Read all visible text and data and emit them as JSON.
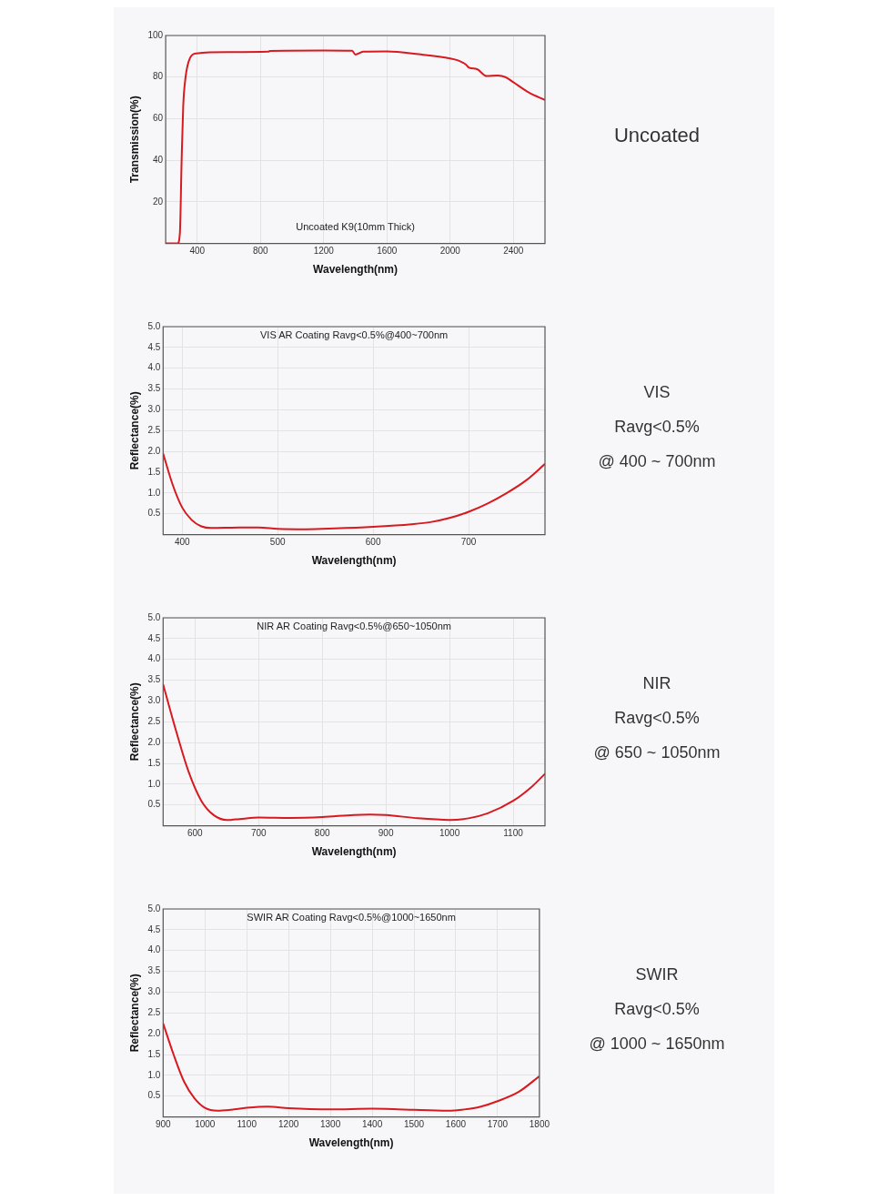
{
  "chart_data": [
    {
      "type": "line",
      "title": "Uncoated K9(10mm Thick)",
      "xlabel": "Wavelength(nm)",
      "ylabel": "Transmission(%)",
      "xlim": [
        200,
        2600
      ],
      "xticks": [
        400,
        800,
        1200,
        1600,
        2000,
        2400
      ],
      "ylim": [
        0,
        100
      ],
      "yticks": [
        20,
        40,
        60,
        80,
        100
      ],
      "grid": true,
      "legend": false,
      "x": [
        200,
        275,
        290,
        301,
        311,
        326,
        353,
        395,
        600,
        850,
        860,
        1200,
        1380,
        1400,
        1450,
        1600,
        1800,
        2000,
        2050,
        2100,
        2120,
        2170,
        2230,
        2300,
        2350,
        2400,
        2500,
        2600
      ],
      "series": [
        {
          "color": "#d71920",
          "values": [
            0,
            0,
            5,
            40,
            66,
            80,
            89,
            91.4,
            92,
            92.2,
            92.6,
            92.8,
            92.7,
            90.8,
            92.2,
            92.3,
            91,
            89,
            88,
            86,
            84.5,
            83.8,
            80.5,
            80.8,
            80,
            77.5,
            72.5,
            69
          ]
        }
      ]
    },
    {
      "type": "other",
      "annotations": [
        "Uncoated"
      ]
    },
    {
      "type": "line",
      "title": "VIS AR Coating Ravg<0.5%@400~700nm",
      "xlabel": "Wavelength(nm)",
      "ylabel": "Reflectance(%)",
      "xlim": [
        380,
        780
      ],
      "xticks": [
        400,
        500,
        600,
        700
      ],
      "ylim": [
        0,
        5
      ],
      "yticks": [
        0.5,
        {
          "value": 1,
          "label": "1.0"
        },
        1.5,
        {
          "value": 2,
          "label": "2.0"
        },
        2.5,
        {
          "value": 3,
          "label": "3.0"
        },
        3.5,
        {
          "value": 4,
          "label": "4.0"
        },
        4.5,
        {
          "value": 5,
          "label": "5.0"
        }
      ],
      "grid": true,
      "legend": false,
      "x": [
        380,
        390,
        400,
        410,
        420,
        430,
        460,
        480,
        500,
        530,
        560,
        600,
        640,
        660,
        680,
        700,
        720,
        740,
        760,
        780
      ],
      "series": [
        {
          "color": "#d71920",
          "values": [
            1.95,
            1.2,
            0.65,
            0.35,
            0.2,
            0.16,
            0.17,
            0.17,
            0.14,
            0.13,
            0.15,
            0.19,
            0.25,
            0.3,
            0.4,
            0.55,
            0.75,
            1.0,
            1.3,
            1.7
          ]
        }
      ]
    },
    {
      "type": "other",
      "annotations": [
        "VIS",
        "Ravg<0.5%",
        "@ 400 ~ 700nm"
      ]
    },
    {
      "type": "line",
      "title": "NIR AR Coating Ravg<0.5%@650~1050nm",
      "xlabel": "Wavelength(nm)",
      "ylabel": "Reflectance(%)",
      "xlim": [
        550,
        1150
      ],
      "xticks": [
        600,
        700,
        800,
        900,
        1000,
        1100
      ],
      "ylim": [
        0,
        5
      ],
      "yticks": [
        0.5,
        {
          "value": 1,
          "label": "1.0"
        },
        1.5,
        {
          "value": 2,
          "label": "2.0"
        },
        2.5,
        {
          "value": 3,
          "label": "3.0"
        },
        3.5,
        {
          "value": 4,
          "label": "4.0"
        },
        4.5,
        {
          "value": 5,
          "label": "5.0"
        }
      ],
      "grid": true,
      "legend": false,
      "x": [
        550,
        570,
        590,
        610,
        630,
        650,
        670,
        700,
        750,
        800,
        850,
        875,
        900,
        950,
        1000,
        1030,
        1060,
        1100,
        1130,
        1150
      ],
      "series": [
        {
          "color": "#d71920",
          "values": [
            3.4,
            2.3,
            1.3,
            0.6,
            0.25,
            0.14,
            0.16,
            0.2,
            0.19,
            0.21,
            0.26,
            0.27,
            0.26,
            0.18,
            0.14,
            0.18,
            0.3,
            0.6,
            0.95,
            1.25
          ]
        }
      ]
    },
    {
      "type": "other",
      "annotations": [
        "NIR",
        "Ravg<0.5%",
        "@ 650 ~ 1050nm"
      ]
    },
    {
      "type": "line",
      "title": "SWIR AR Coating Ravg<0.5%@1000~1650nm",
      "xlabel": "Wavelength(nm)",
      "ylabel": "Reflectance(%)",
      "xlim": [
        900,
        1800
      ],
      "xticks": [
        900,
        1000,
        1100,
        1200,
        1300,
        1400,
        1500,
        1600,
        1700,
        1800
      ],
      "ylim": [
        0,
        5
      ],
      "yticks": [
        0.5,
        {
          "value": 1,
          "label": "1.0"
        },
        1.5,
        {
          "value": 2,
          "label": "2.0"
        },
        2.5,
        {
          "value": 3,
          "label": "3.0"
        },
        3.5,
        {
          "value": 4,
          "label": "4.0"
        },
        4.5,
        {
          "value": 5,
          "label": "5.0"
        }
      ],
      "grid": true,
      "legend": false,
      "x": [
        900,
        925,
        950,
        975,
        1000,
        1030,
        1060,
        1100,
        1150,
        1200,
        1300,
        1400,
        1450,
        1500,
        1580,
        1620,
        1660,
        1700,
        1750,
        1800
      ],
      "series": [
        {
          "color": "#d71920",
          "values": [
            2.25,
            1.5,
            0.85,
            0.45,
            0.22,
            0.15,
            0.17,
            0.22,
            0.25,
            0.21,
            0.18,
            0.2,
            0.19,
            0.17,
            0.15,
            0.18,
            0.25,
            0.38,
            0.6,
            0.98
          ]
        }
      ]
    },
    {
      "type": "other",
      "annotations": [
        "SWIR",
        "Ravg<0.5%",
        "@ 1000 ~ 1650nm"
      ]
    }
  ]
}
